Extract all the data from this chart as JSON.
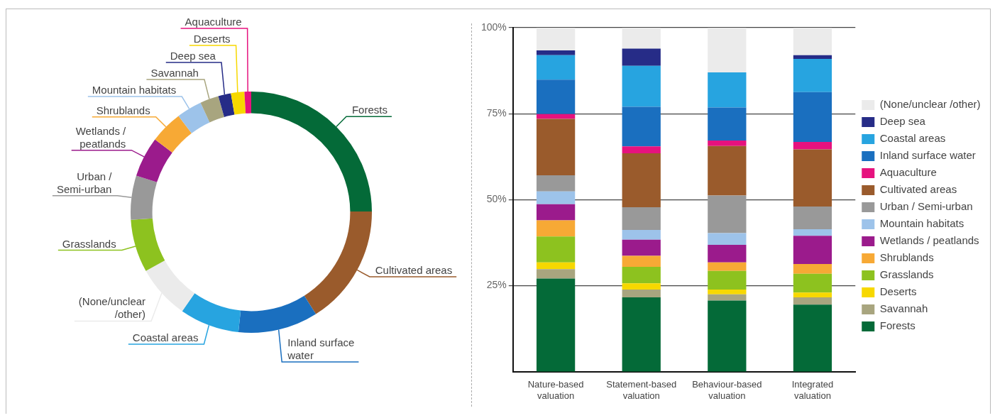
{
  "chart_data": [
    {
      "type": "donut",
      "categories": [
        "Forests",
        "Cultivated areas",
        "Inland surface water",
        "Coastal areas",
        "(None/unclear /other)",
        "Grasslands",
        "Urban / Semi-urban",
        "Wetlands / peatlands",
        "Shrublands",
        "Mountain habitats",
        "Savannah",
        "Deep sea",
        "Deserts",
        "Aquaculture"
      ],
      "values": [
        24.9,
        16.1,
        10.7,
        8.0,
        7.2,
        7.1,
        5.9,
        5.4,
        4.4,
        3.4,
        2.5,
        1.7,
        1.8,
        0.9
      ],
      "colors": [
        "#046a38",
        "#9a5b2c",
        "#1a6fbf",
        "#27a4e0",
        "#ebebeb",
        "#8dc21f",
        "#999999",
        "#9b1b8c",
        "#f7a935",
        "#9dc3ea",
        "#a8a57f",
        "#262c87",
        "#f7d800",
        "#e6127e"
      ]
    },
    {
      "type": "bar",
      "stacked": true,
      "categories": [
        "Nature-based valuation",
        "Statement-based valuation",
        "Behaviour-based valuation",
        "Integrated valuation"
      ],
      "series": [
        {
          "name": "Forests",
          "color": "#046a38",
          "values": [
            27.1,
            21.6,
            20.7,
            19.5
          ]
        },
        {
          "name": "Savannah",
          "color": "#a8a57f",
          "values": [
            2.7,
            2.3,
            1.8,
            2.1
          ]
        },
        {
          "name": "Deserts",
          "color": "#f7d800",
          "values": [
            2.0,
            1.8,
            1.4,
            1.4
          ]
        },
        {
          "name": "Grasslands",
          "color": "#8dc21f",
          "values": [
            7.5,
            4.8,
            5.4,
            5.5
          ]
        },
        {
          "name": "Shrublands",
          "color": "#f7a935",
          "values": [
            4.7,
            3.2,
            2.5,
            2.8
          ]
        },
        {
          "name": "Wetlands / peatlands",
          "color": "#9b1b8c",
          "values": [
            4.7,
            4.7,
            5.1,
            8.2
          ]
        },
        {
          "name": "Mountain habitats",
          "color": "#9dc3ea",
          "values": [
            3.7,
            2.8,
            3.4,
            1.9
          ]
        },
        {
          "name": "Urban / Semi-urban",
          "color": "#999999",
          "values": [
            4.7,
            6.6,
            10.9,
            6.6
          ]
        },
        {
          "name": "Cultivated areas",
          "color": "#9a5b2c",
          "values": [
            16.4,
            15.7,
            14.4,
            16.6
          ]
        },
        {
          "name": "Aquaculture",
          "color": "#e6127e",
          "values": [
            1.4,
            2.0,
            1.6,
            2.2
          ]
        },
        {
          "name": "Inland surface water",
          "color": "#1a6fbf",
          "values": [
            10.0,
            11.5,
            9.6,
            14.5
          ]
        },
        {
          "name": "Coastal areas",
          "color": "#27a4e0",
          "values": [
            7.1,
            11.9,
            10.2,
            9.6
          ]
        },
        {
          "name": "Deep sea",
          "color": "#262c87",
          "values": [
            1.4,
            5.0,
            0,
            1.1
          ]
        },
        {
          "name": "(None/unclear /other)",
          "color": "#ebebeb",
          "values": [
            6.6,
            6.1,
            13.0,
            8.0
          ]
        }
      ],
      "ylim": [
        0,
        100
      ],
      "yticks": [
        {
          "value": 25,
          "label": "25%"
        },
        {
          "value": 50,
          "label": "50%"
        },
        {
          "value": 75,
          "label": "75%"
        },
        {
          "value": 100,
          "label": "100%"
        }
      ],
      "grid": "y",
      "legend": "right"
    }
  ]
}
